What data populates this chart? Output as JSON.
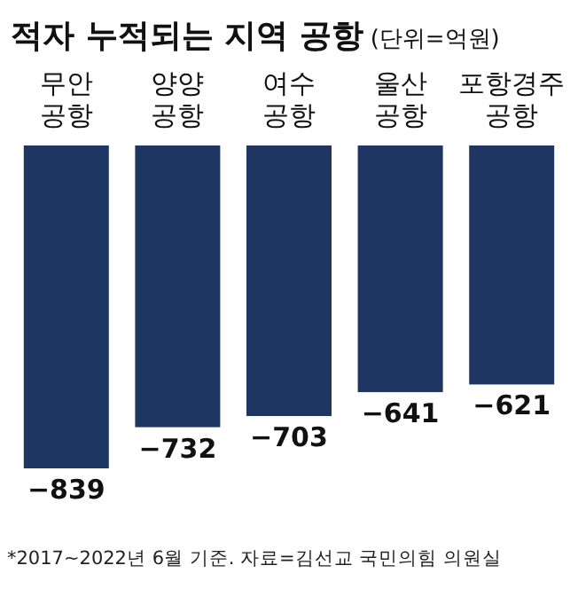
{
  "chart_data": {
    "type": "bar",
    "title": "적자 누적되는 지역 공항",
    "subtitle": "(단위=억원)",
    "categories": [
      "무안 공항",
      "양양 공항",
      "여수 공항",
      "울산 공항",
      "포항경주 공항"
    ],
    "values": [
      -839,
      -732,
      -703,
      -641,
      -621
    ],
    "color": "#1f3662",
    "data_labels": true,
    "annotations": [
      "*2017~2022년 6월 기준. 자료=김선교 국민의힘 의원실"
    ]
  }
}
